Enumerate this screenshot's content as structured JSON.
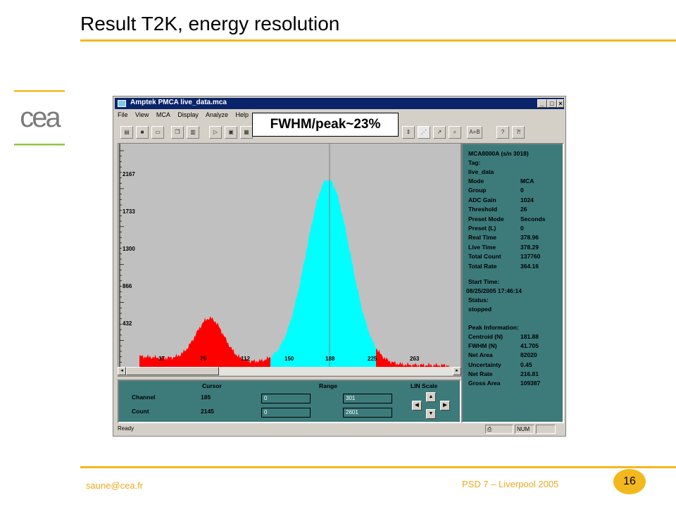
{
  "slide": {
    "title": "Result T2K, energy resolution",
    "email": "saune@cea.fr",
    "footer": "PSD 7 – Liverpool 2005",
    "page_number": "16",
    "logo_text": "cea",
    "accent_color": "#f2b81d",
    "annotation": "FWHM/peak~23%"
  },
  "window": {
    "title": "Amptek PMCA   live_data.mca",
    "menu": [
      "File",
      "View",
      "MCA",
      "Display",
      "Analyze",
      "Help"
    ],
    "toolbar_labels": [
      "A+B"
    ],
    "status_ready": "Ready",
    "status_num": "NUM"
  },
  "plot": {
    "y_ticks": [
      "2167",
      "1733",
      "1300",
      "866",
      "432"
    ],
    "x_ticks": [
      "37",
      "75",
      "112",
      "150",
      "188",
      "225",
      "263"
    ],
    "colors": {
      "background": "#c0c0c0",
      "roi": "#00ffff",
      "outside": "#ff0000"
    }
  },
  "info": {
    "device": "MCA8000A (s/n 3018)",
    "tag_label": "Tag:",
    "tag_value": "live_data",
    "rows": [
      {
        "k": "Mode",
        "v": "MCA"
      },
      {
        "k": "Group",
        "v": "0"
      },
      {
        "k": "ADC Gain",
        "v": "1024"
      },
      {
        "k": "Threshold",
        "v": "26"
      },
      {
        "k": "Preset Mode",
        "v": "Seconds"
      },
      {
        "k": "Preset (L)",
        "v": "0"
      },
      {
        "k": "Real Time",
        "v": "378.96"
      },
      {
        "k": "Live Time",
        "v": "378.29"
      },
      {
        "k": "Total Count",
        "v": "137760"
      },
      {
        "k": "Total Rate",
        "v": "364.16"
      }
    ],
    "start_label": "Start Time:",
    "start_value": "08/25/2005 17:46:14",
    "status_label": "Status:",
    "status_value": "stopped",
    "peak_header": "Peak Information:",
    "peak_rows": [
      {
        "k": "Centroid (N)",
        "v": "181.88"
      },
      {
        "k": "FWHM (N)",
        "v": "41.705"
      },
      {
        "k": "Net Area",
        "v": "82020"
      },
      {
        "k": "Uncertainty",
        "v": "0.45"
      },
      {
        "k": "Net Rate",
        "v": "216.81"
      },
      {
        "k": "Gross Area",
        "v": "109387"
      }
    ]
  },
  "controls": {
    "cursor_header": "Cursor",
    "range_header": "Range",
    "scale_header": "LIN Scale",
    "channel_label": "Channel",
    "channel_value": "185",
    "count_label": "Count",
    "count_value": "2145",
    "range_low_1": "0",
    "range_high_1": "301",
    "range_low_2": "0",
    "range_high_2": "2601"
  }
}
